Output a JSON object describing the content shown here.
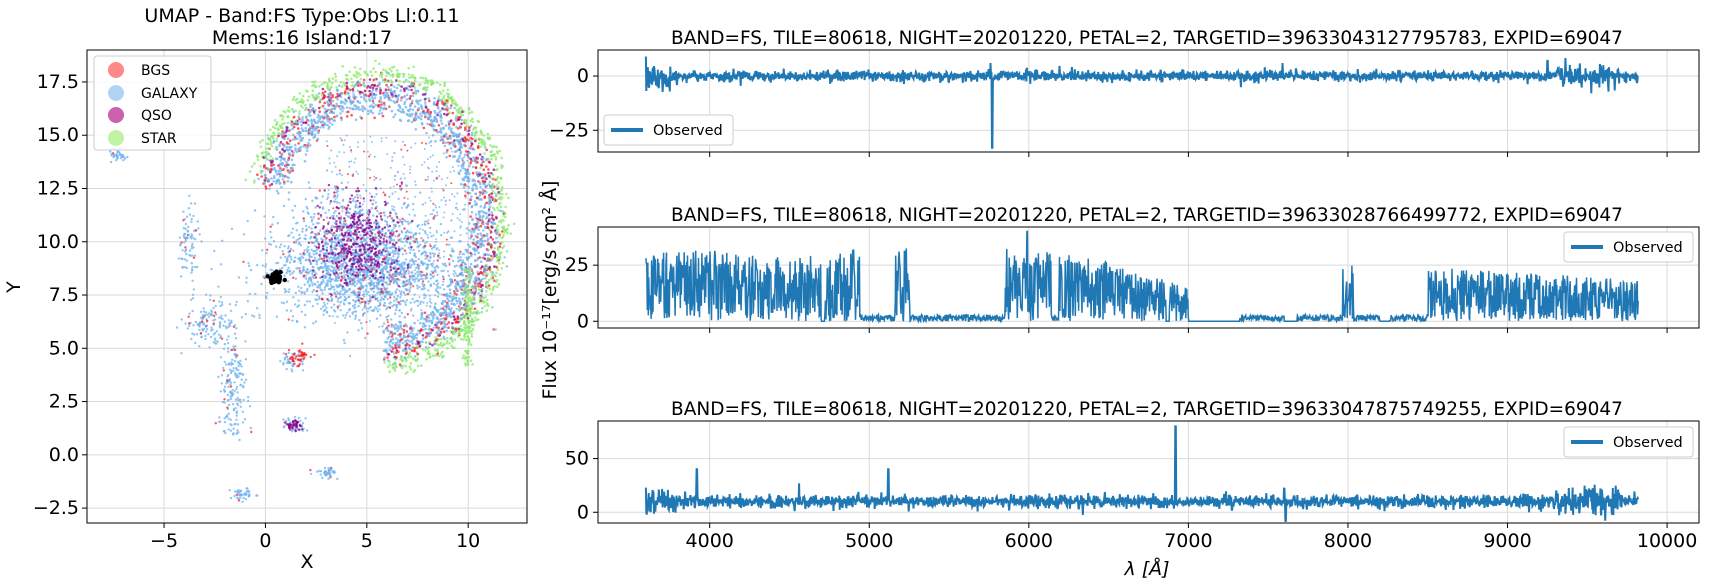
{
  "chart_data": [
    {
      "type": "scatter",
      "title": "UMAP  -  Band:FS Type:Obs Ll:0.11",
      "subtitle": "Mems:16 Island:17",
      "xlabel": "X",
      "ylabel": "Y",
      "xlim": [
        -8.8,
        12.9
      ],
      "ylim": [
        -3.2,
        19.0
      ],
      "xticks": [
        -5,
        0,
        5,
        10
      ],
      "xtick_labels": [
        "−5",
        "0",
        "5",
        "10"
      ],
      "yticks": [
        -2.5,
        0.0,
        2.5,
        5.0,
        7.5,
        10.0,
        12.5,
        15.0,
        17.5
      ],
      "ytick_labels": [
        "−2.5",
        "0.0",
        "2.5",
        "5.0",
        "7.5",
        "10.0",
        "12.5",
        "15.0",
        "17.5"
      ],
      "grid": true,
      "legend_position": "top-left",
      "legend": [
        {
          "label": "BGS",
          "color": "#ff6b6b"
        },
        {
          "label": "GALAXY",
          "color": "#a8cff5"
        },
        {
          "label": "QSO",
          "color": "#c2399a"
        },
        {
          "label": "STAR",
          "color": "#b9f29a"
        }
      ],
      "point_colors": {
        "BGS": "#ff2020",
        "GALAXY": "#6fb1ef",
        "QSO": "#8b008b",
        "STAR": "#8cea6e",
        "highlight": "#000000"
      },
      "clusters": [
        {
          "class": "GALAXY",
          "x": -7.3,
          "y": 14.1,
          "sx": 0.2,
          "sy": 0.15
        },
        {
          "class": "GALAXY",
          "x": -3.8,
          "y": 10.0,
          "sx": 0.25,
          "sy": 0.8
        },
        {
          "class": "GALAXY",
          "x": -2.8,
          "y": 6.2,
          "sx": 0.6,
          "sy": 0.55
        },
        {
          "class": "GALAXY",
          "x": -1.6,
          "y": 3.0,
          "sx": 0.35,
          "sy": 1.2
        },
        {
          "class": "GALAXY",
          "x": -1.1,
          "y": -1.85,
          "sx": 0.25,
          "sy": 0.12
        },
        {
          "class": "GALAXY",
          "x": 1.4,
          "y": 4.4,
          "sx": 0.3,
          "sy": 0.25
        },
        {
          "class": "GALAXY",
          "x": 1.5,
          "y": 1.4,
          "sx": 0.25,
          "sy": 0.2
        },
        {
          "class": "GALAXY",
          "x": 3.1,
          "y": -0.85,
          "sx": 0.2,
          "sy": 0.12
        },
        {
          "class": "GALAXY",
          "x": 4.5,
          "y": 9.5,
          "sx": 1.8,
          "sy": 1.4
        },
        {
          "class": "GALAXY",
          "x": 5.0,
          "y": 8.5,
          "sx": 2.5,
          "sy": 1.0
        },
        {
          "class": "QSO",
          "x": 4.6,
          "y": 10.0,
          "sx": 1.0,
          "sy": 1.1
        },
        {
          "class": "QSO",
          "x": 1.4,
          "y": 1.4,
          "sx": 0.2,
          "sy": 0.15
        },
        {
          "class": "BGS",
          "x": 1.7,
          "y": 4.6,
          "sx": 0.25,
          "sy": 0.2
        },
        {
          "class": "highlight",
          "x": 0.5,
          "y": 8.3,
          "sx": 0.15,
          "sy": 0.15
        }
      ],
      "arc": {
        "center_x": 5.5,
        "center_y": 11.0,
        "radius_x": 6.0,
        "radius_y": 6.6,
        "angle_start_deg": -85,
        "angle_end_deg": 165
      }
    },
    {
      "type": "line",
      "title": "BAND=FS, TILE=80618, NIGHT=20201220, PETAL=2, TARGETID=39633043127795783, EXPID=69047",
      "series": [
        {
          "name": "Observed",
          "color": "#1f77b4"
        }
      ],
      "legend_position": "bottom-left",
      "xlim": [
        3300,
        10200
      ],
      "ylim": [
        -35,
        12
      ],
      "yticks": [
        -25,
        0
      ],
      "ytick_labels": [
        "−25",
        "0"
      ],
      "baseline": 0,
      "noise": 1.2,
      "spikes": [
        {
          "x": 3600,
          "y": 9
        },
        {
          "x": 3620,
          "y": -5
        },
        {
          "x": 5770,
          "y": -33
        },
        {
          "x": 5760,
          "y": 6
        },
        {
          "x": 7590,
          "y": 6
        },
        {
          "x": 9250,
          "y": 7
        },
        {
          "x": 9600,
          "y": 5
        },
        {
          "x": 4800,
          "y": 3
        }
      ]
    },
    {
      "type": "line",
      "title": "BAND=FS, TILE=80618, NIGHT=20201220, PETAL=2, TARGETID=39633028766499772, EXPID=69047",
      "series": [
        {
          "name": "Observed",
          "color": "#1f77b4"
        }
      ],
      "legend_position": "top-right",
      "xlim": [
        3300,
        10200
      ],
      "ylim": [
        -3,
        42
      ],
      "yticks": [
        0,
        25
      ],
      "ytick_labels": [
        "0",
        "25"
      ],
      "envelope": [
        [
          3600,
          30
        ],
        [
          4000,
          32
        ],
        [
          4500,
          28
        ],
        [
          5000,
          33
        ],
        [
          5500,
          34
        ],
        [
          6000,
          32
        ],
        [
          6500,
          27
        ],
        [
          7000,
          15
        ],
        [
          7500,
          22
        ],
        [
          8000,
          26
        ],
        [
          8500,
          24
        ],
        [
          9000,
          22
        ],
        [
          9500,
          20
        ],
        [
          9800,
          18
        ]
      ],
      "gaps": [
        [
          4700,
          4720
        ],
        [
          6860,
          6880
        ],
        [
          7000,
          7320
        ],
        [
          7600,
          7680
        ],
        [
          8200,
          8260
        ]
      ],
      "peak": {
        "x": 5990,
        "y": 40
      }
    },
    {
      "type": "line",
      "title": "BAND=FS, TILE=80618, NIGHT=20201220, PETAL=2, TARGETID=39633047875749255, EXPID=69047",
      "series": [
        {
          "name": "Observed",
          "color": "#1f77b4"
        }
      ],
      "legend_position": "top-right",
      "xlabel": "λ [Å]",
      "xlim": [
        3300,
        10200
      ],
      "ylim": [
        -10,
        85
      ],
      "xticks": [
        4000,
        5000,
        6000,
        7000,
        8000,
        9000,
        10000
      ],
      "xtick_labels": [
        "4000",
        "5000",
        "6000",
        "7000",
        "8000",
        "9000",
        "10000"
      ],
      "yticks": [
        0,
        50
      ],
      "ytick_labels": [
        "0",
        "50"
      ],
      "baseline": 10,
      "noise": 3,
      "spikes": [
        {
          "x": 3600,
          "y": 23
        },
        {
          "x": 3920,
          "y": 40
        },
        {
          "x": 4560,
          "y": 27
        },
        {
          "x": 5120,
          "y": 40
        },
        {
          "x": 6920,
          "y": 80
        },
        {
          "x": 7600,
          "y": 22
        },
        {
          "x": 7610,
          "y": -8
        },
        {
          "x": 9520,
          "y": 20
        }
      ]
    }
  ],
  "shared_ylabel": "Flux 10⁻¹⁷[erg/s cm² Å]"
}
